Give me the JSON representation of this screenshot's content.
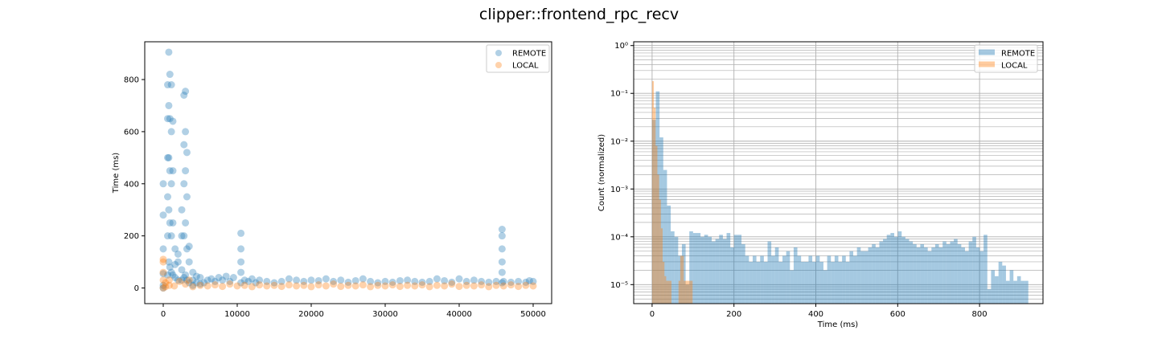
{
  "figure_title": "clipper::frontend_rpc_recv",
  "colors": {
    "remote": "#1f77b4",
    "local": "#ff7f0e"
  },
  "chart_data": [
    {
      "type": "scatter",
      "title": "",
      "xlabel": "",
      "ylabel": "Time (ms)",
      "xlim": [
        -2500,
        52500
      ],
      "ylim": [
        -60,
        945
      ],
      "xticks": [
        0,
        10000,
        20000,
        30000,
        40000,
        50000
      ],
      "yticks": [
        0,
        200,
        400,
        600,
        800
      ],
      "legend": {
        "position": "top-right",
        "entries": [
          "REMOTE",
          "LOCAL"
        ]
      },
      "grid": false,
      "series": [
        {
          "name": "REMOTE",
          "points": [
            [
              0,
              0
            ],
            [
              0,
              10
            ],
            [
              0,
              55
            ],
            [
              0,
              150
            ],
            [
              0,
              280
            ],
            [
              0,
              400
            ],
            [
              600,
              50
            ],
            [
              600,
              200
            ],
            [
              600,
              350
            ],
            [
              600,
              500
            ],
            [
              600,
              650
            ],
            [
              600,
              780
            ],
            [
              750,
              100
            ],
            [
              750,
              300
            ],
            [
              750,
              500
            ],
            [
              750,
              700
            ],
            [
              750,
              905
            ],
            [
              900,
              80
            ],
            [
              900,
              250
            ],
            [
              900,
              450
            ],
            [
              900,
              650
            ],
            [
              900,
              820
            ],
            [
              1100,
              60
            ],
            [
              1100,
              200
            ],
            [
              1100,
              400
            ],
            [
              1100,
              600
            ],
            [
              1100,
              780
            ],
            [
              1300,
              50
            ],
            [
              1300,
              250
            ],
            [
              1300,
              450
            ],
            [
              1300,
              640
            ],
            [
              1600,
              40
            ],
            [
              1600,
              90
            ],
            [
              1600,
              150
            ],
            [
              2000,
              30
            ],
            [
              2000,
              100
            ],
            [
              2000,
              130
            ],
            [
              2500,
              30
            ],
            [
              2500,
              70
            ],
            [
              2500,
              200
            ],
            [
              2500,
              300
            ],
            [
              2800,
              40
            ],
            [
              2800,
              200
            ],
            [
              2800,
              400
            ],
            [
              2800,
              550
            ],
            [
              2800,
              740
            ],
            [
              3000,
              50
            ],
            [
              3000,
              250
            ],
            [
              3000,
              450
            ],
            [
              3000,
              600
            ],
            [
              3000,
              755
            ],
            [
              3200,
              30
            ],
            [
              3200,
              150
            ],
            [
              3200,
              350
            ],
            [
              3200,
              520
            ],
            [
              3500,
              20
            ],
            [
              3500,
              100
            ],
            [
              3500,
              160
            ],
            [
              4000,
              10
            ],
            [
              4000,
              30
            ],
            [
              4000,
              60
            ],
            [
              4500,
              20
            ],
            [
              4500,
              45
            ],
            [
              5000,
              15
            ],
            [
              5000,
              40
            ],
            [
              5500,
              20
            ],
            [
              6000,
              30
            ],
            [
              6500,
              35
            ],
            [
              7000,
              25
            ],
            [
              7500,
              40
            ],
            [
              8000,
              30
            ],
            [
              8500,
              45
            ],
            [
              9000,
              25
            ],
            [
              9500,
              40
            ],
            [
              10500,
              20
            ],
            [
              10500,
              60
            ],
            [
              10500,
              100
            ],
            [
              10500,
              150
            ],
            [
              10500,
              210
            ],
            [
              11000,
              30
            ],
            [
              11500,
              25
            ],
            [
              12000,
              35
            ],
            [
              12500,
              20
            ],
            [
              13000,
              30
            ],
            [
              14000,
              25
            ],
            [
              15000,
              20
            ],
            [
              16000,
              25
            ],
            [
              17000,
              35
            ],
            [
              18000,
              30
            ],
            [
              19000,
              25
            ],
            [
              20000,
              30
            ],
            [
              21000,
              28
            ],
            [
              22000,
              35
            ],
            [
              23000,
              25
            ],
            [
              24000,
              30
            ],
            [
              25000,
              22
            ],
            [
              26000,
              28
            ],
            [
              27000,
              35
            ],
            [
              28000,
              25
            ],
            [
              29000,
              20
            ],
            [
              30000,
              25
            ],
            [
              31000,
              22
            ],
            [
              32000,
              28
            ],
            [
              33000,
              30
            ],
            [
              34000,
              25
            ],
            [
              35000,
              22
            ],
            [
              36000,
              25
            ],
            [
              37000,
              35
            ],
            [
              38000,
              28
            ],
            [
              39000,
              22
            ],
            [
              40000,
              35
            ],
            [
              41000,
              25
            ],
            [
              42000,
              30
            ],
            [
              43000,
              25
            ],
            [
              44000,
              22
            ],
            [
              45000,
              25
            ],
            [
              45800,
              20
            ],
            [
              45800,
              60
            ],
            [
              45800,
              100
            ],
            [
              45800,
              150
            ],
            [
              45800,
              200
            ],
            [
              45800,
              225
            ],
            [
              46000,
              25
            ],
            [
              47000,
              22
            ],
            [
              48000,
              25
            ],
            [
              49000,
              22
            ],
            [
              49500,
              28
            ],
            [
              50000,
              25
            ]
          ]
        },
        {
          "name": "LOCAL",
          "points": [
            [
              0,
              0
            ],
            [
              0,
              30
            ],
            [
              0,
              60
            ],
            [
              0,
              100
            ],
            [
              0,
              110
            ],
            [
              300,
              5
            ],
            [
              300,
              20
            ],
            [
              800,
              10
            ],
            [
              800,
              30
            ],
            [
              1500,
              8
            ],
            [
              2200,
              25
            ],
            [
              3000,
              15
            ],
            [
              3500,
              30
            ],
            [
              4000,
              5
            ],
            [
              5000,
              10
            ],
            [
              6000,
              8
            ],
            [
              7000,
              12
            ],
            [
              8000,
              6
            ],
            [
              9000,
              15
            ],
            [
              10000,
              8
            ],
            [
              11000,
              10
            ],
            [
              12000,
              5
            ],
            [
              13000,
              12
            ],
            [
              14000,
              8
            ],
            [
              15000,
              10
            ],
            [
              16000,
              6
            ],
            [
              17000,
              12
            ],
            [
              18000,
              8
            ],
            [
              19000,
              10
            ],
            [
              20000,
              5
            ],
            [
              21000,
              12
            ],
            [
              22000,
              8
            ],
            [
              23000,
              15
            ],
            [
              24000,
              6
            ],
            [
              25000,
              10
            ],
            [
              26000,
              8
            ],
            [
              27000,
              12
            ],
            [
              28000,
              5
            ],
            [
              29000,
              10
            ],
            [
              30000,
              8
            ],
            [
              31000,
              12
            ],
            [
              32000,
              6
            ],
            [
              33000,
              10
            ],
            [
              34000,
              8
            ],
            [
              35000,
              12
            ],
            [
              36000,
              5
            ],
            [
              37000,
              10
            ],
            [
              38000,
              8
            ],
            [
              39000,
              15
            ],
            [
              40000,
              6
            ],
            [
              41000,
              10
            ],
            [
              42000,
              8
            ],
            [
              43000,
              12
            ],
            [
              44000,
              5
            ],
            [
              45000,
              10
            ],
            [
              46000,
              8
            ],
            [
              47000,
              12
            ],
            [
              48000,
              6
            ],
            [
              49000,
              10
            ],
            [
              50000,
              8
            ]
          ]
        }
      ]
    },
    {
      "type": "bar",
      "title": "",
      "xlabel": "Time (ms)",
      "ylabel": "Count (normalized)",
      "yscale": "log",
      "xlim": [
        -45,
        955
      ],
      "ylim": [
        4e-06,
        1.2
      ],
      "xticks": [
        0,
        200,
        400,
        600,
        800
      ],
      "yticks": [
        1e-05,
        0.0001,
        0.001,
        0.01,
        0.1,
        1
      ],
      "ytick_labels": [
        "10⁻⁵",
        "10⁻⁴",
        "10⁻³",
        "10⁻²",
        "10⁻¹",
        "10⁰"
      ],
      "legend": {
        "position": "top-right",
        "entries": [
          "REMOTE",
          "LOCAL"
        ]
      },
      "grid": true,
      "series": [
        {
          "name": "REMOTE",
          "bin_width": 9.1,
          "bin_start": 0,
          "values": [
            0.028,
            0.11,
            0.012,
            0.0025,
            0.00045,
            0.00013,
            0.0001,
            4e-05,
            7e-05,
            1e-05,
            0.00013,
            0.00012,
            0.00012,
            0.0001,
            0.00011,
            0.0001,
            8e-05,
            9e-05,
            0.00011,
            9e-05,
            0.00012,
            6e-05,
            0.00011,
            0.00011,
            7e-05,
            4e-05,
            3e-05,
            4e-05,
            3e-05,
            4e-05,
            3e-05,
            8e-05,
            4e-05,
            6e-05,
            3e-05,
            4e-05,
            5e-05,
            2e-05,
            6e-05,
            4e-05,
            3e-05,
            3e-05,
            4e-05,
            3e-05,
            4e-05,
            3e-05,
            2e-05,
            4e-05,
            3e-05,
            4e-05,
            3e-05,
            4e-05,
            3e-05,
            5e-05,
            4e-05,
            6e-05,
            5e-05,
            5e-05,
            6e-05,
            7e-05,
            6e-05,
            8e-05,
            9e-05,
            0.00011,
            0.00012,
            0.0001,
            0.00013,
            0.0001,
            9e-05,
            8e-05,
            7e-05,
            6e-05,
            7e-05,
            6e-05,
            5e-05,
            6e-05,
            7e-05,
            6e-05,
            8e-05,
            7e-05,
            8e-05,
            9e-05,
            7e-05,
            6e-05,
            5e-05,
            8e-05,
            0.0001,
            6e-05,
            5e-05,
            0.00011,
            8e-06,
            2e-05,
            1.5e-05,
            3e-05,
            2.5e-05,
            1.2e-05,
            2e-05,
            1.2e-05,
            1.5e-05,
            1.2e-05,
            1.2e-05
          ]
        },
        {
          "name": "LOCAL",
          "bin_width": 4.3,
          "bin_start": 0,
          "values": [
            0.18,
            0.05,
            0.008,
            0.002,
            0.0006,
            0.00015,
            3e-05,
            1.5e-05,
            1.2e-05,
            1.2e-05,
            1.2e-05,
            0,
            0,
            0,
            0,
            1.2e-05,
            4e-05,
            4e-05,
            1.2e-05,
            1.2e-05,
            1.2e-05,
            1.2e-05,
            1.2e-05
          ]
        }
      ]
    }
  ]
}
